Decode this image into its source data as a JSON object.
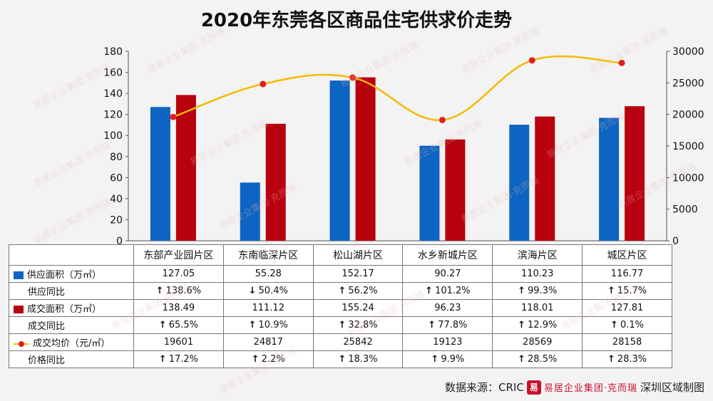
{
  "title": "2020年东莞各区商品住宅供求价走势",
  "colors": {
    "supply": "#0d64c2",
    "deal": "#b8000e",
    "price_line": "#f6b800",
    "price_marker": "#e02020"
  },
  "watermark": "易居企业集团·克而瑞",
  "chart_data": {
    "type": "bar",
    "title": "2020年东莞各区商品住宅供求价走势",
    "categories": [
      "东部产业园片区",
      "东南临深片区",
      "松山湖片区",
      "水乡新城片区",
      "滨海片区",
      "城区片区"
    ],
    "series": [
      {
        "name": "供应面积（万㎡）",
        "type": "bar",
        "axis": "left",
        "values": [
          127.05,
          55.28,
          152.17,
          90.27,
          110.23,
          116.77
        ]
      },
      {
        "name": "成交面积（万㎡）",
        "type": "bar",
        "axis": "left",
        "values": [
          138.49,
          111.12,
          155.24,
          96.23,
          118.01,
          127.81
        ]
      },
      {
        "name": "成交均价（元/㎡）",
        "type": "line",
        "axis": "right",
        "values": [
          19601,
          24817,
          25842,
          19123,
          28569,
          28158
        ]
      }
    ],
    "y_left": {
      "min": 0,
      "max": 180,
      "step": 20
    },
    "y_right": {
      "min": 0,
      "max": 30000,
      "step": 5000
    },
    "yticks_left": [
      "0",
      "20",
      "40",
      "60",
      "80",
      "100",
      "120",
      "140",
      "160",
      "180"
    ],
    "yticks_right": [
      "0",
      "5000",
      "10000",
      "15000",
      "20000",
      "25000",
      "30000"
    ],
    "grid": false,
    "legend": "data table below chart"
  },
  "table": {
    "rows": [
      {
        "label": "供应面积（万㎡）",
        "key": "bar-supply",
        "cells": [
          "127.05",
          "55.28",
          "152.17",
          "90.27",
          "110.23",
          "116.77"
        ]
      },
      {
        "label": "供应同比",
        "key": "none",
        "cells": [
          {
            "dir": "up",
            "text": "138.6%"
          },
          {
            "dir": "down",
            "text": "50.4%"
          },
          {
            "dir": "up",
            "text": "56.2%"
          },
          {
            "dir": "up",
            "text": "101.2%"
          },
          {
            "dir": "up",
            "text": "99.3%"
          },
          {
            "dir": "up",
            "text": "15.7%"
          }
        ]
      },
      {
        "label": "成交面积（万㎡）",
        "key": "bar-deal",
        "cells": [
          "138.49",
          "111.12",
          "155.24",
          "96.23",
          "118.01",
          "127.81"
        ]
      },
      {
        "label": "成交同比",
        "key": "none",
        "cells": [
          {
            "dir": "up",
            "text": "65.5%"
          },
          {
            "dir": "up",
            "text": "10.9%"
          },
          {
            "dir": "up",
            "text": "32.8%"
          },
          {
            "dir": "up",
            "text": "77.8%"
          },
          {
            "dir": "up",
            "text": "12.9%"
          },
          {
            "dir": "up",
            "text": "0.1%"
          }
        ]
      },
      {
        "label": "成交均价（元/㎡）",
        "key": "line-price",
        "cells": [
          "19601",
          "24817",
          "25842",
          "19123",
          "28569",
          "28158"
        ]
      },
      {
        "label": "价格同比",
        "key": "none",
        "cells": [
          {
            "dir": "up",
            "text": "17.2%"
          },
          {
            "dir": "up",
            "text": "2.2%"
          },
          {
            "dir": "up",
            "text": "18.3%"
          },
          {
            "dir": "up",
            "text": "9.9%"
          },
          {
            "dir": "up",
            "text": "28.5%"
          },
          {
            "dir": "up",
            "text": "28.3%"
          }
        ]
      }
    ]
  },
  "source": {
    "prefix": "数据来源：CRIC",
    "logo_seal": "易",
    "logo_text": "易居企业集团·克而瑞",
    "suffix": "深圳区域制图"
  }
}
